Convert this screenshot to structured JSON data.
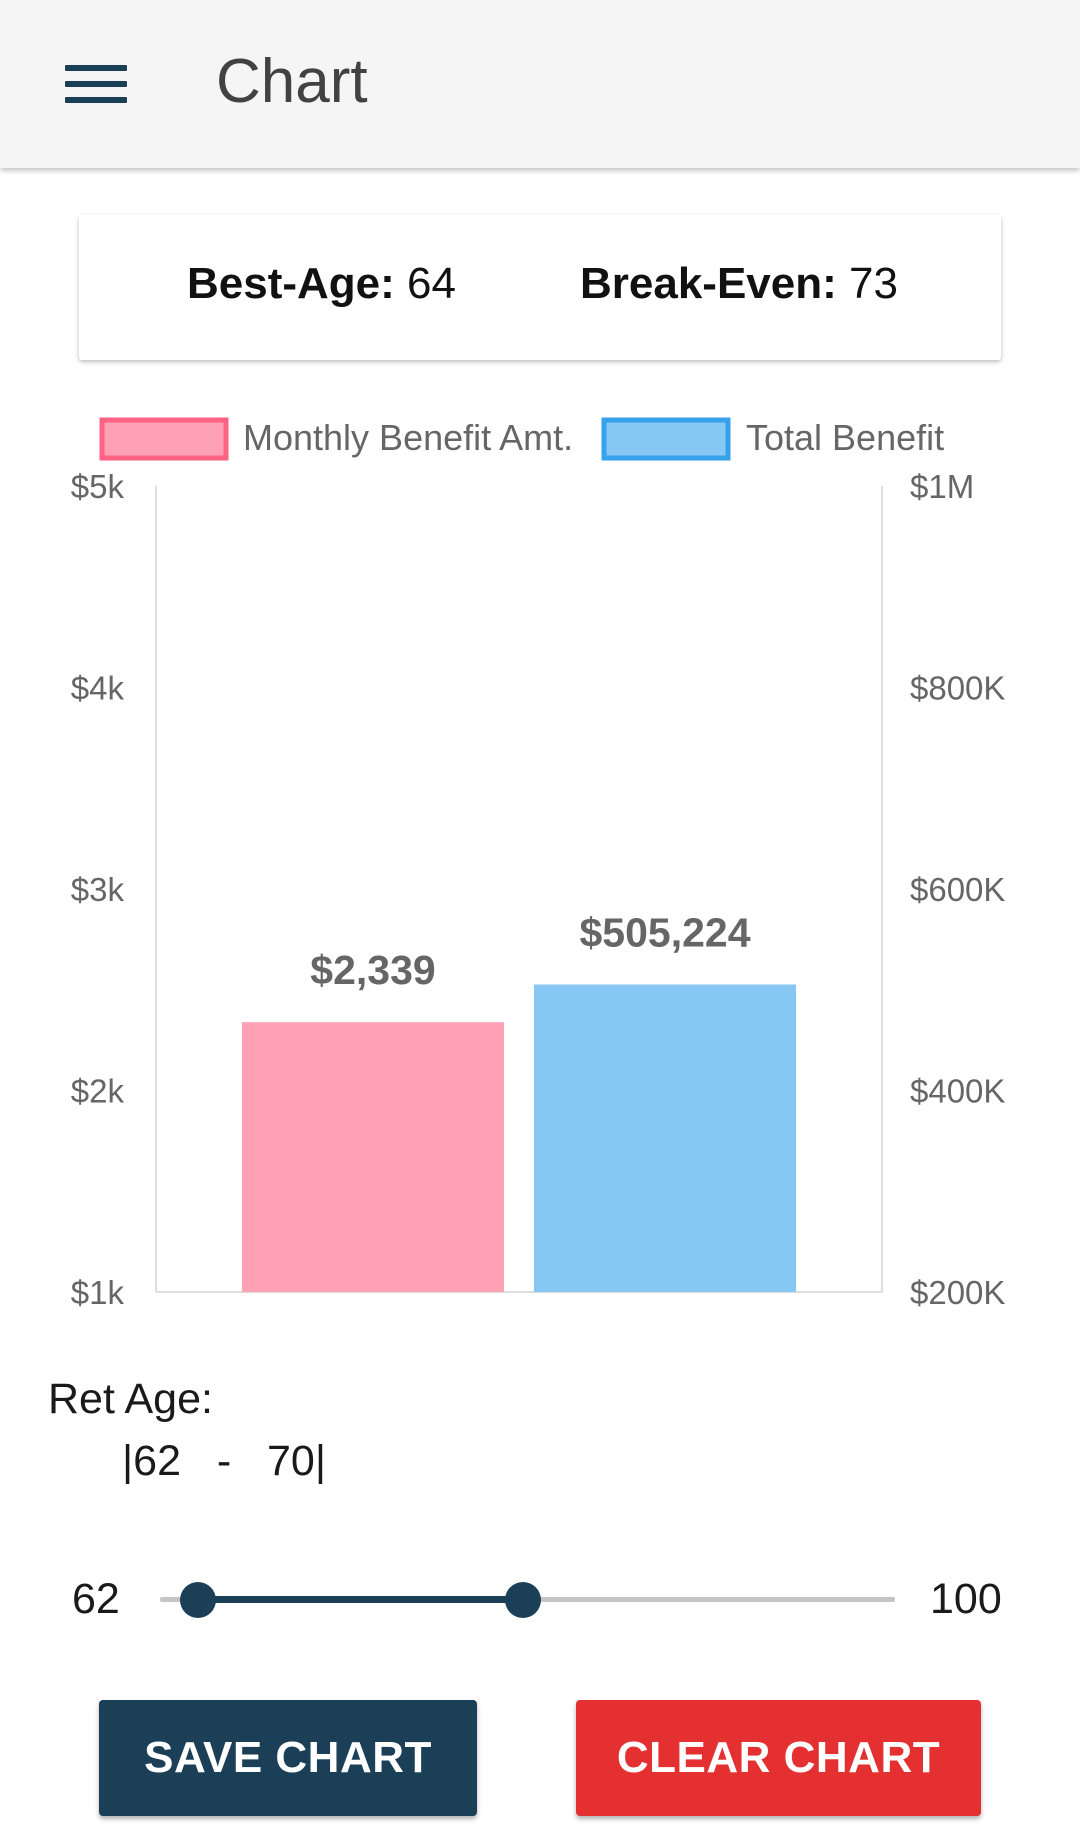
{
  "appbar": {
    "title": "Chart",
    "menu_icon": "hamburger-menu-icon"
  },
  "summary": {
    "best_age_label": "Best-Age:",
    "best_age_value": "64",
    "break_even_label": "Break-Even:",
    "break_even_value": "73"
  },
  "chart_data": {
    "type": "bar",
    "categories": [
      ""
    ],
    "series": [
      {
        "name": "Monthly Benefit Amt.",
        "axis": "left",
        "values": [
          2339
        ],
        "label": "$2,339",
        "fill": "#ffa1b5",
        "stroke": "#ff6384"
      },
      {
        "name": "Total Benefit",
        "axis": "right",
        "values": [
          505224
        ],
        "label": "$505,224",
        "fill": "#86c7f3",
        "stroke": "#36a2eb"
      }
    ],
    "y_left": {
      "ylim": [
        1000,
        5000
      ],
      "ticks": [
        5000,
        4000,
        3000,
        2000,
        1000
      ],
      "tick_labels": [
        "$5k",
        "$4k",
        "$3k",
        "$2k",
        "$1k"
      ]
    },
    "y_right": {
      "ylim": [
        200000,
        1000000
      ],
      "ticks": [
        1000000,
        800000,
        600000,
        400000,
        200000
      ],
      "tick_labels": [
        "$1M",
        "$800K",
        "$600K",
        "$400K",
        "$200K"
      ]
    },
    "legend": "top",
    "grid": false
  },
  "ret_age": {
    "label": "Ret Age:",
    "range_text": "|62   -   70|"
  },
  "slider": {
    "min": 62,
    "max": 100,
    "low": 62,
    "high": 70,
    "min_label": "62",
    "max_label": "100",
    "colors": {
      "active": "#1b3f57",
      "track": "#c4c4c4"
    }
  },
  "buttons": {
    "save_label": "SAVE CHART",
    "clear_label": "CLEAR CHART"
  },
  "colors": {
    "primary": "#1b3f57",
    "danger": "#e53032",
    "appbar": "#f5f5f5"
  }
}
